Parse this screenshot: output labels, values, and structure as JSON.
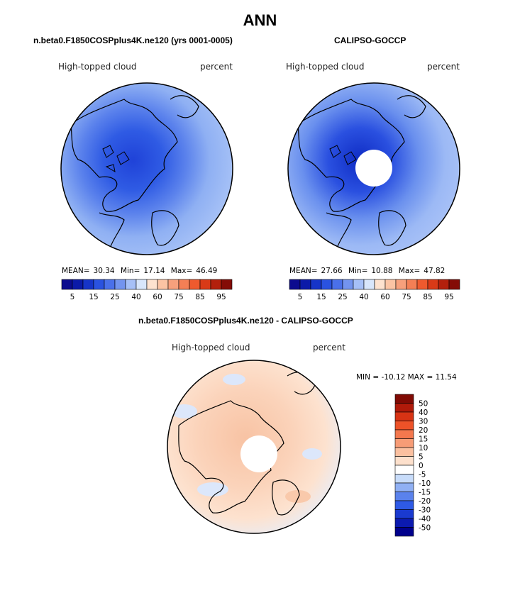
{
  "figure": {
    "season": "ANN",
    "model_title": "n.beta0.F1850COSPplus4K.ne120 (yrs 0001-0005)",
    "obs_title": "CALIPSO-GOCCP",
    "diff_title": "n.beta0.F1850COSPplus4K.ne120 - CALIPSO-GOCCP"
  },
  "colors": {
    "blue_scale": [
      "#0c0c8f",
      "#0b1aa8",
      "#1634c8",
      "#2a52e0",
      "#4a70ea",
      "#7394ef",
      "#a6c0f7",
      "#d8e6fb"
    ],
    "red_scale": [
      "#fde2cf",
      "#fbc4a4",
      "#f7a07c",
      "#f47f55",
      "#ef5a2e",
      "#d93a17",
      "#b3200c",
      "#840c06"
    ],
    "diff_scale": [
      "#00008c",
      "#0b1ab0",
      "#1a3ad0",
      "#2e5ae6",
      "#5a82ec",
      "#90b0f4",
      "#c8dcfa",
      "#ffffff",
      "#fde0cc",
      "#fbc0a0",
      "#f79c76",
      "#f4784e",
      "#ed5228",
      "#d83314",
      "#b01a0a",
      "#800a04"
    ]
  },
  "chart_data": [
    {
      "type": "heatmap",
      "panel": "model",
      "title": "n.beta0.F1850COSPplus4K.ne120 (yrs 0001-0005)",
      "variable": "High-topped cloud",
      "units": "percent",
      "projection": "north-polar-stereographic",
      "stats": {
        "mean_label": "MEAN=",
        "mean": "30.34",
        "min_label": "Min=",
        "min": "17.14",
        "max_label": "Max=",
        "max": "46.49"
      },
      "colorbar_levels": [
        "5",
        "15",
        "25",
        "40",
        "60",
        "75",
        "85",
        "95"
      ]
    },
    {
      "type": "heatmap",
      "panel": "obs",
      "title": "CALIPSO-GOCCP",
      "variable": "High-topped cloud",
      "units": "percent",
      "projection": "north-polar-stereographic",
      "stats": {
        "mean_label": "MEAN=",
        "mean": "27.66",
        "min_label": "Min=",
        "min": "10.88",
        "max_label": "Max=",
        "max": "47.82"
      },
      "colorbar_levels": [
        "5",
        "15",
        "25",
        "40",
        "60",
        "75",
        "85",
        "95"
      ]
    },
    {
      "type": "heatmap",
      "panel": "difference",
      "title": "n.beta0.F1850COSPplus4K.ne120 - CALIPSO-GOCCP",
      "variable": "High-topped cloud",
      "units": "percent",
      "projection": "north-polar-stereographic",
      "stats_text": "MIN = -10.12 MAX =  11.54",
      "colorbar_levels": [
        "50",
        "40",
        "30",
        "20",
        "15",
        "10",
        "5",
        "0",
        "-5",
        "-10",
        "-15",
        "-20",
        "-30",
        "-40",
        "-50"
      ]
    }
  ]
}
